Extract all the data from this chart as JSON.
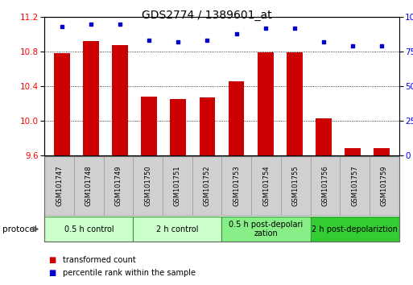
{
  "title": "GDS2774 / 1389601_at",
  "samples": [
    "GSM101747",
    "GSM101748",
    "GSM101749",
    "GSM101750",
    "GSM101751",
    "GSM101752",
    "GSM101753",
    "GSM101754",
    "GSM101755",
    "GSM101756",
    "GSM101757",
    "GSM101759"
  ],
  "bar_values": [
    10.78,
    10.92,
    10.88,
    10.28,
    10.25,
    10.27,
    10.46,
    10.79,
    10.79,
    10.03,
    9.68,
    9.68
  ],
  "percentile_values": [
    93,
    95,
    95,
    83,
    82,
    83,
    88,
    92,
    92,
    82,
    79,
    79
  ],
  "ylim_left": [
    9.6,
    11.2
  ],
  "yticks_left": [
    9.6,
    10.0,
    10.4,
    10.8,
    11.2
  ],
  "yticks_right": [
    0,
    25,
    50,
    75,
    100
  ],
  "bar_color": "#cc0000",
  "dot_color": "#0000cc",
  "protocol_groups": [
    {
      "label": "0.5 h control",
      "start": 0,
      "end": 3,
      "color": "#ccffcc"
    },
    {
      "label": "2 h control",
      "start": 3,
      "end": 6,
      "color": "#ccffcc"
    },
    {
      "label": "0.5 h post-depolarization",
      "start": 6,
      "end": 9,
      "color": "#88ee88"
    },
    {
      "label": "2 h post-depolariztion",
      "start": 9,
      "end": 12,
      "color": "#33cc33"
    }
  ],
  "legend_bar_label": "transformed count",
  "legend_dot_label": "percentile rank within the sample",
  "protocol_label": "protocol",
  "title_fontsize": 10,
  "tick_fontsize": 7.5,
  "sample_fontsize": 6,
  "proto_fontsize": 7,
  "legend_fontsize": 7
}
